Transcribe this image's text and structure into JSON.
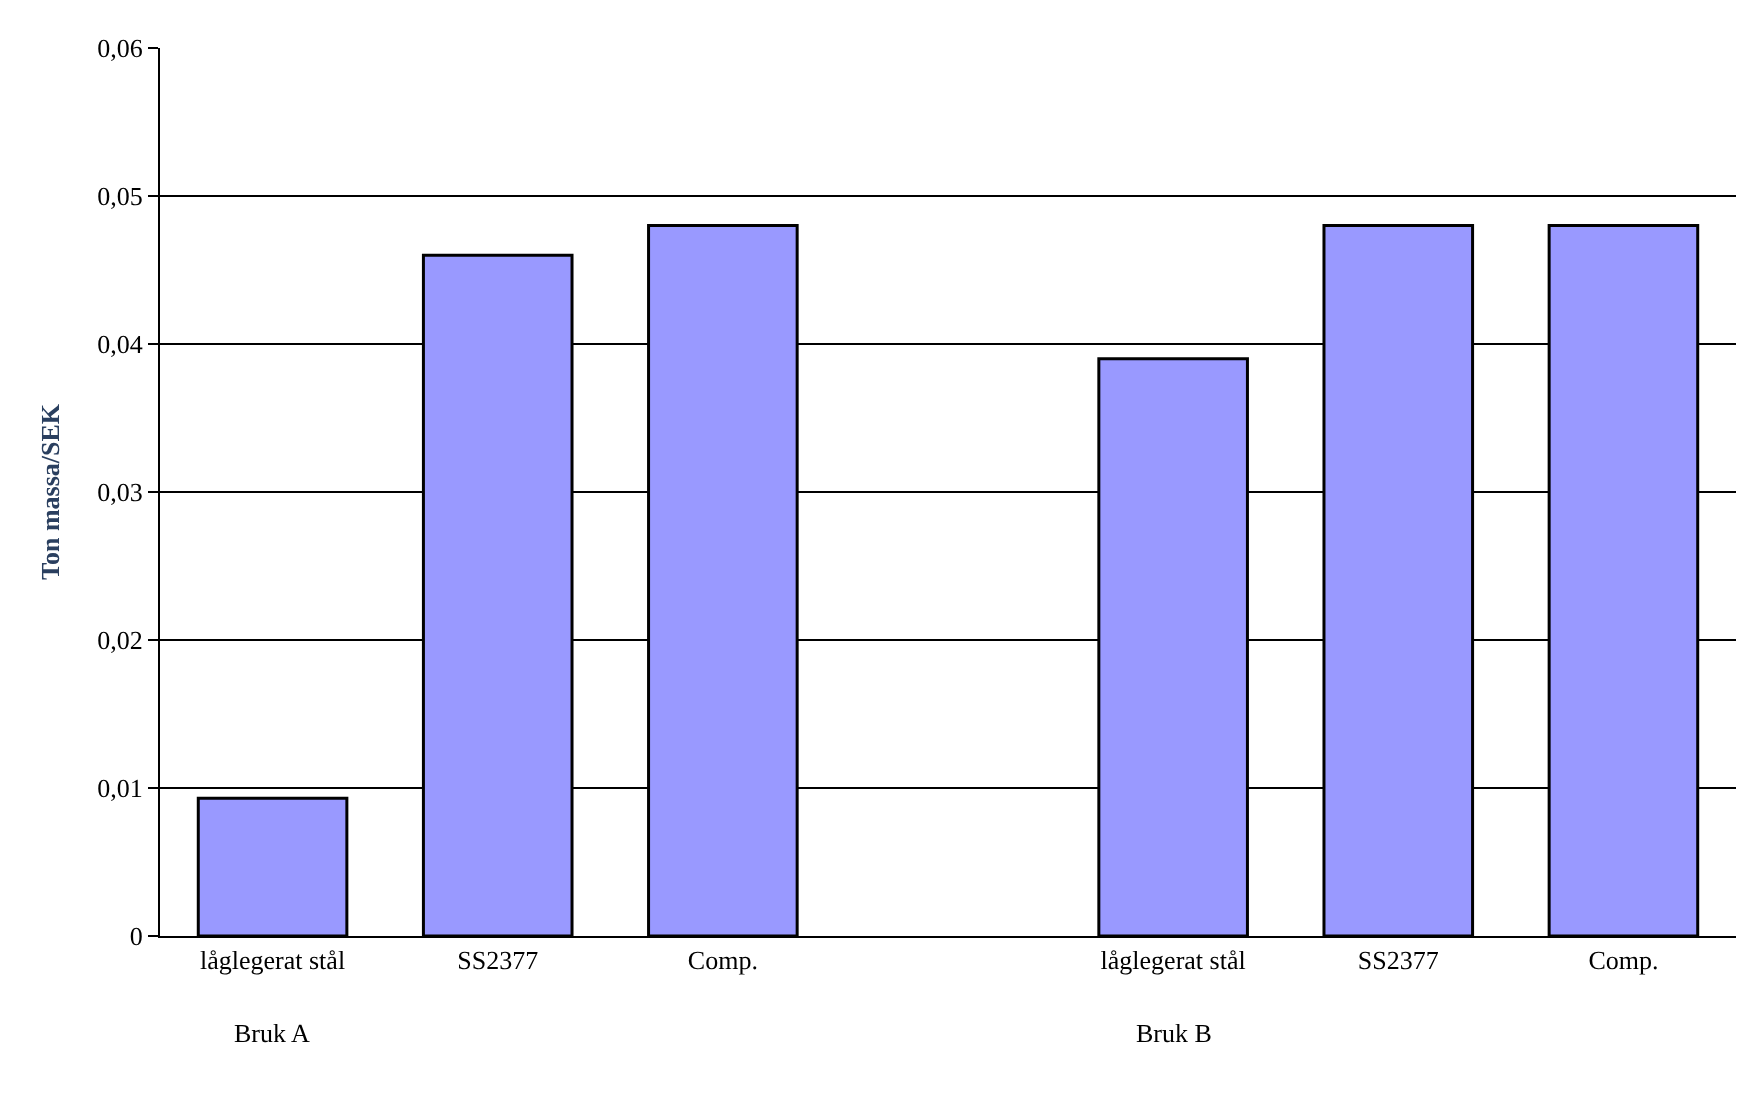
{
  "chart_data": {
    "type": "bar",
    "ylabel": "Ton massa/SEK",
    "categories": [
      "låglegerat stål",
      "SS2377",
      "Comp.",
      null,
      "låglegerat stål",
      "SS2377",
      "Comp."
    ],
    "values": [
      0.0093,
      0.046,
      0.048,
      null,
      0.039,
      0.048,
      0.048
    ],
    "color": "#9999ff",
    "ylim": [
      0,
      0.06
    ],
    "yticks": [
      0,
      {
        "value": 0.01,
        "label": "0,01"
      },
      {
        "value": 0.02,
        "label": "0,02"
      },
      {
        "value": 0.03,
        "label": "0,03"
      },
      {
        "value": 0.04,
        "label": "0,04"
      },
      {
        "value": 0.05,
        "label": "0,05"
      },
      {
        "value": 0.06,
        "label": "0,06"
      }
    ],
    "grid": "y",
    "annotations": [
      "Bruk A",
      "Bruk B"
    ]
  }
}
